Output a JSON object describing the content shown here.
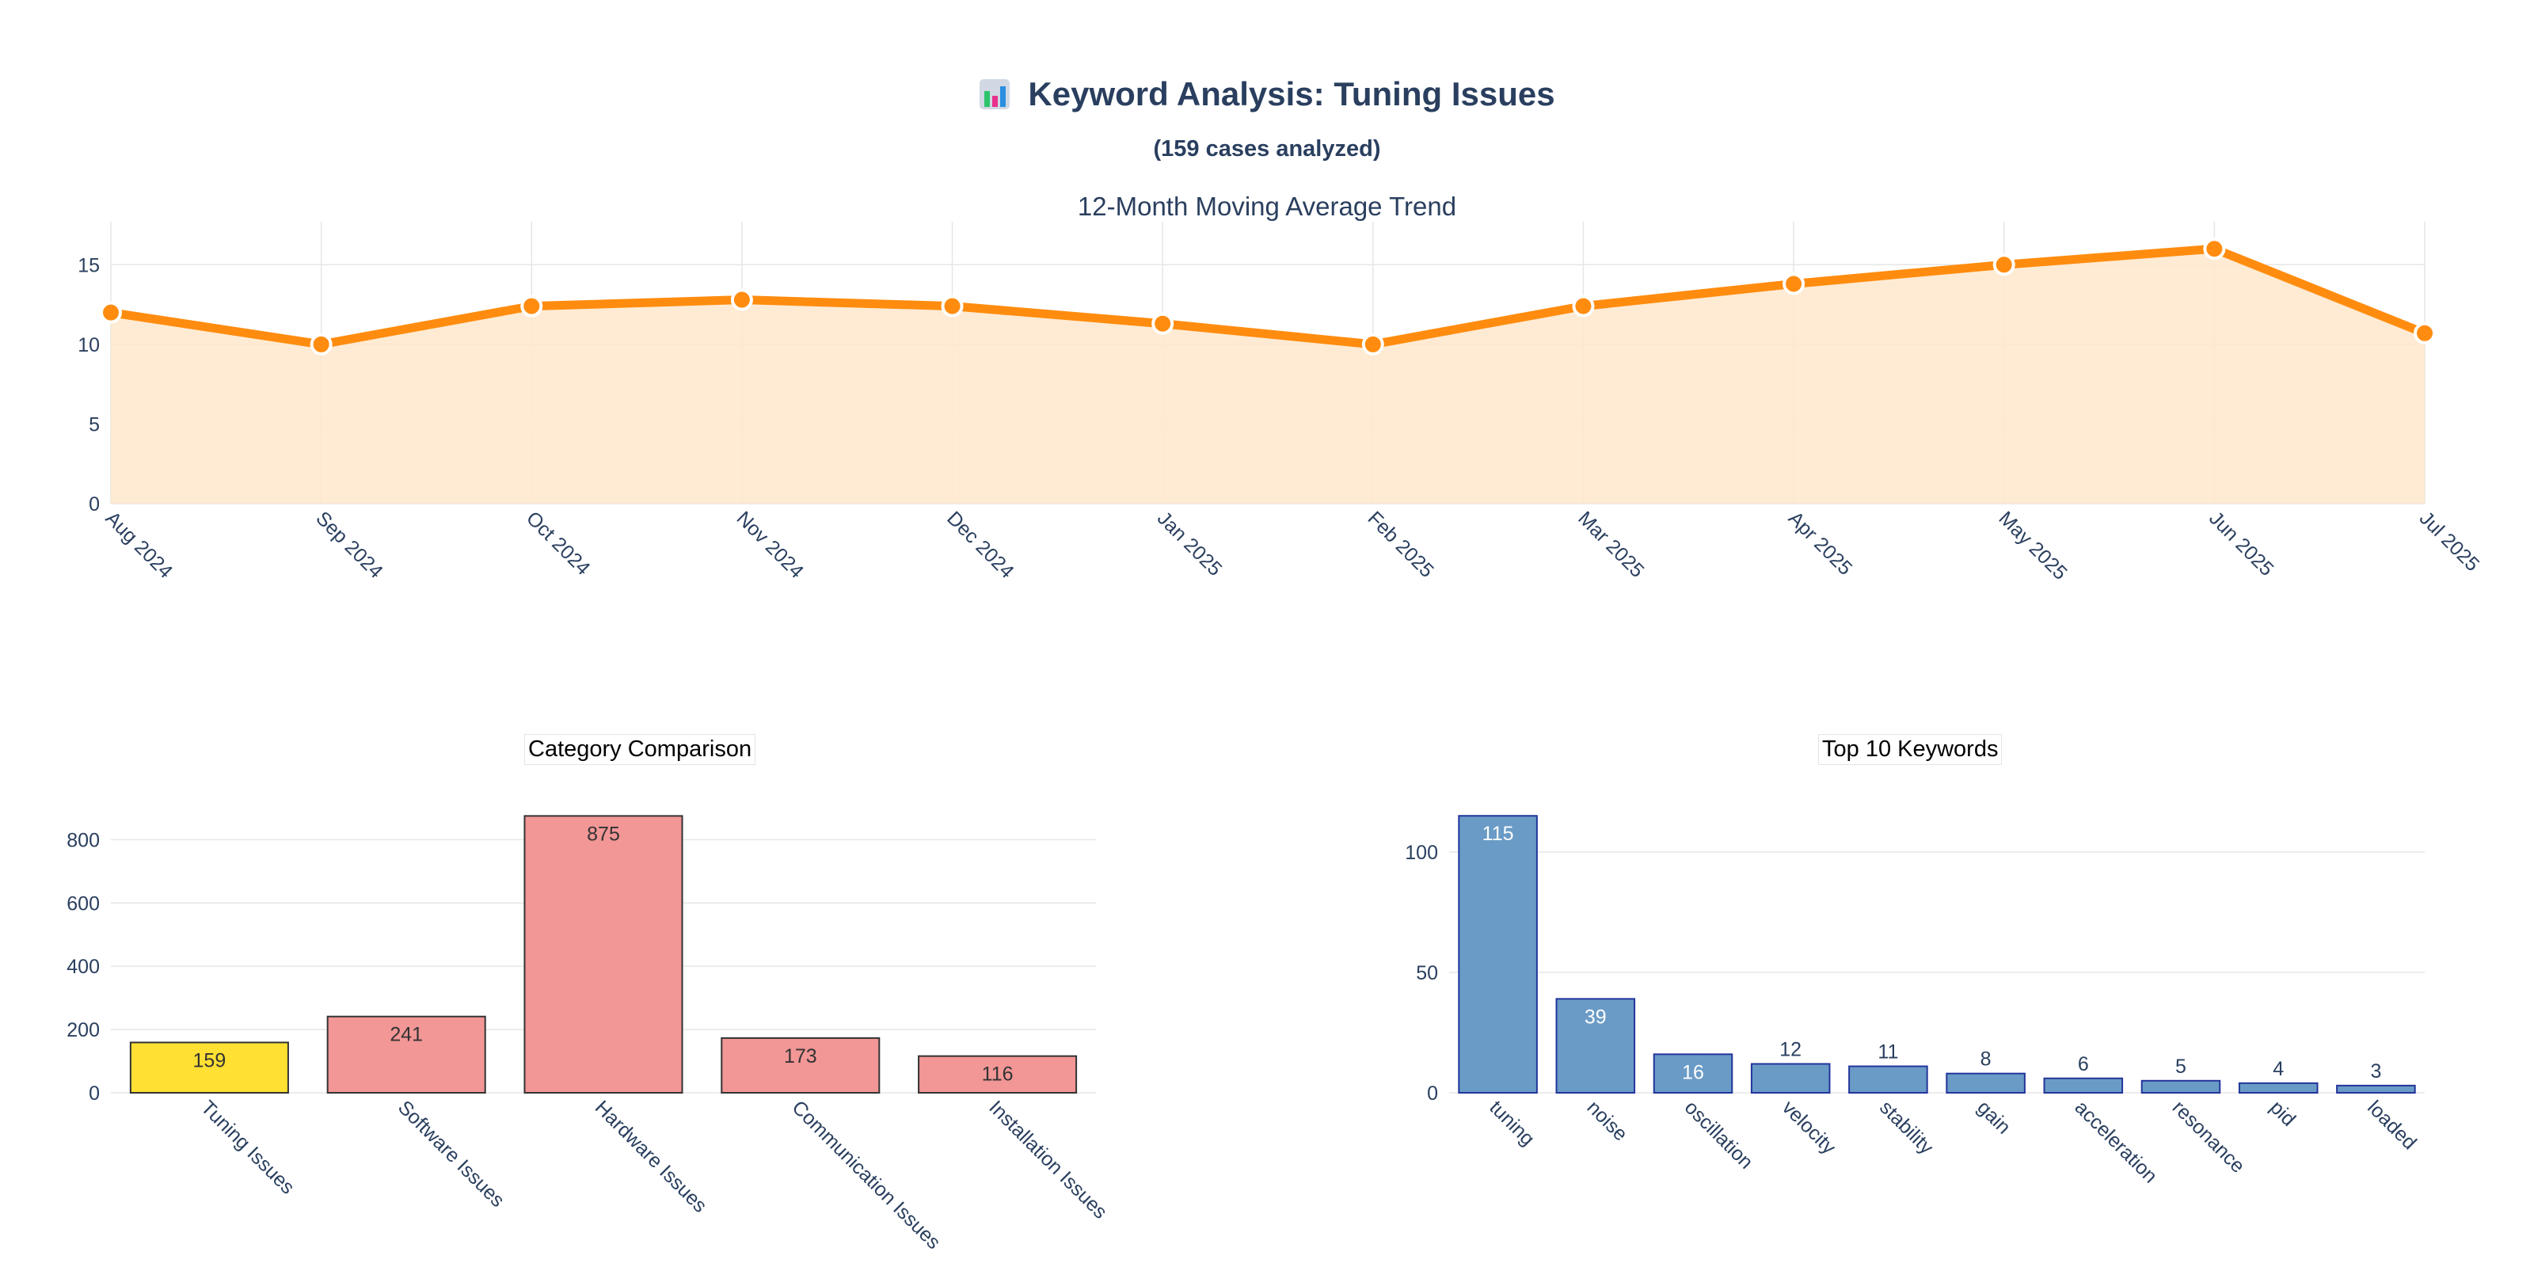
{
  "header": {
    "title": "Keyword Analysis: Tuning Issues",
    "subtitle": "(159 cases analyzed)",
    "icon": "bar-chart-icon"
  },
  "colors": {
    "trend_line": "#ff8c0f",
    "trend_fill": "#ffe7cb",
    "highlight_bar": "#ffe033",
    "category_bar": "#f29696",
    "keyword_bar": "#6a9bc6",
    "keyword_bar_border": "#23359b",
    "text": "#2a3f5f",
    "grid": "#e6e6e6"
  },
  "chart_data": [
    {
      "type": "area",
      "title": "12-Month Moving Average Trend",
      "x": [
        "Aug 2024",
        "Sep 2024",
        "Oct 2024",
        "Nov 2024",
        "Dec 2024",
        "Jan 2025",
        "Feb 2025",
        "Mar 2025",
        "Apr 2025",
        "May 2025",
        "Jun 2025",
        "Jul 2025"
      ],
      "values": [
        12,
        10,
        12.4,
        12.8,
        12.4,
        11.3,
        10,
        12.4,
        13.8,
        15,
        16,
        10.7
      ],
      "yticks": [
        0,
        5,
        10,
        15
      ],
      "ylim": [
        0,
        17.7
      ],
      "grid": true
    },
    {
      "type": "bar",
      "title": "Category Comparison",
      "categories": [
        "Tuning Issues",
        "Software Issues",
        "Hardware Issues",
        "Communication Issues",
        "Installation Issues"
      ],
      "values": [
        159,
        241,
        875,
        173,
        116
      ],
      "highlight": "Tuning Issues",
      "yticks": [
        0,
        200,
        400,
        600,
        800
      ],
      "ylim": [
        0,
        921
      ],
      "grid": true
    },
    {
      "type": "bar",
      "title": "Top 10 Keywords",
      "categories": [
        "tuning",
        "noise",
        "oscillation",
        "velocity",
        "stability",
        "gain",
        "acceleration",
        "resonance",
        "pid",
        "loaded"
      ],
      "values": [
        115,
        39,
        16,
        12,
        11,
        8,
        6,
        5,
        4,
        3
      ],
      "yticks": [
        0,
        50,
        100
      ],
      "ylim": [
        0,
        121
      ],
      "grid": true
    }
  ]
}
